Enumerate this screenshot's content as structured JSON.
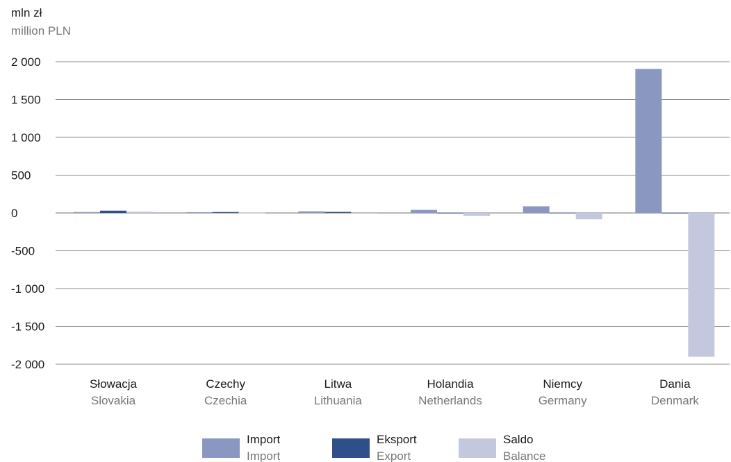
{
  "unit": {
    "pl": "mln zł",
    "en": "million PLN"
  },
  "colors": {
    "grid": "#8c8c8c",
    "axis": "#8c8c8c"
  },
  "chart_data": {
    "type": "bar",
    "ylim": [
      -2000,
      2000
    ],
    "yticks": [
      2000,
      1500,
      1000,
      500,
      0,
      -500,
      -1000,
      -1500,
      -2000
    ],
    "ytick_labels": [
      "2 000",
      "1 500",
      "1 000",
      "500",
      "0",
      "-500",
      "-1 000",
      "-1 500",
      "-2 000"
    ],
    "grid": true,
    "legend_position": "bottom",
    "categories": [
      {
        "pl": "Słowacja",
        "en": "Slovakia"
      },
      {
        "pl": "Czechy",
        "en": "Czechia"
      },
      {
        "pl": "Litwa",
        "en": "Lithuania"
      },
      {
        "pl": "Holandia",
        "en": "Netherlands"
      },
      {
        "pl": "Niemcy",
        "en": "Germany"
      },
      {
        "pl": "Dania",
        "en": "Denmark"
      }
    ],
    "series": [
      {
        "name": "Import",
        "name_en": "Import",
        "color": "#8a97c0",
        "values": [
          12,
          10,
          22,
          40,
          88,
          1905
        ]
      },
      {
        "name": "Eksport",
        "name_en": "Export",
        "color": "#2f4f8a",
        "values": [
          30,
          12,
          14,
          3,
          4,
          3
        ]
      },
      {
        "name": "Saldo",
        "name_en": "Balance",
        "color": "#c4c8de",
        "values": [
          18,
          2,
          -8,
          -37,
          -84,
          -1902
        ]
      }
    ]
  }
}
